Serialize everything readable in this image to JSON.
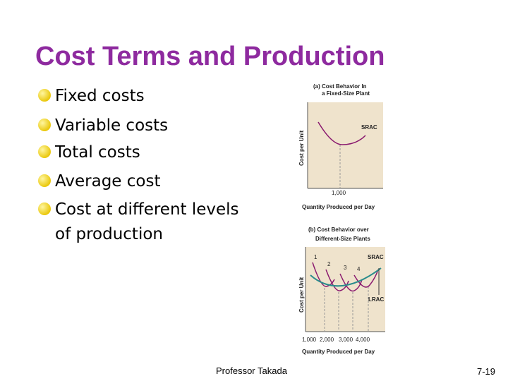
{
  "title": "Cost Terms and Production",
  "bullets": [
    "Fixed costs",
    "Variable costs",
    "Total costs",
    "Average cost",
    "Cost at different levels",
    "of production"
  ],
  "figure_a": {
    "title": [
      "(a) Cost Behavior In",
      "a Fixed-Size Plant"
    ],
    "y_label": "Cost per Unit",
    "curve_label": "SRAC",
    "x_tick": "1,000",
    "x_label": "Quantity Produced per Day"
  },
  "figure_b": {
    "title": [
      "(b) Cost Behavior over",
      "Different-Size Plants"
    ],
    "y_label": "Cost per Unit",
    "curve_numbers": [
      "1",
      "2",
      "3",
      "4"
    ],
    "curve_label": "SRAC",
    "envelope_label": "LRAC",
    "x_ticks": [
      "1,000",
      "2,000",
      "3,000",
      "4,000"
    ],
    "x_label": "Quantity Produced per Day"
  },
  "footer": {
    "author": "Professor Takada",
    "page": "7-19"
  }
}
